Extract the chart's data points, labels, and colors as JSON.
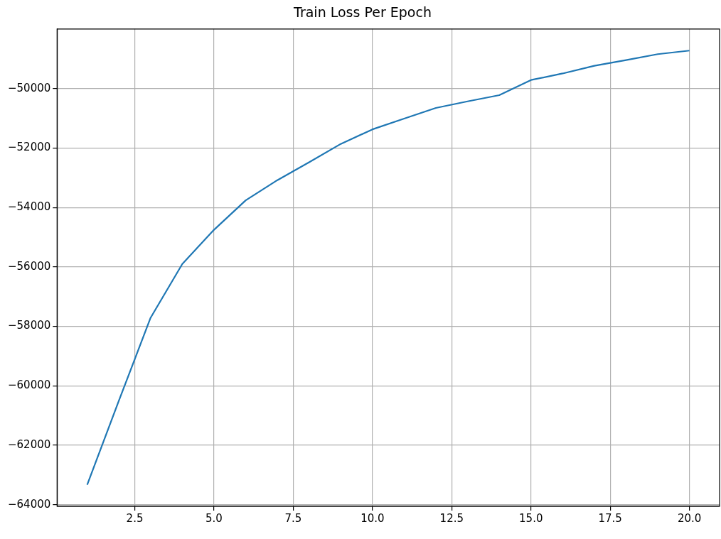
{
  "chart_data": {
    "type": "line",
    "title": "Train Loss Per Epoch",
    "x": [
      1,
      2,
      3,
      4,
      5,
      6,
      7,
      8,
      9,
      10,
      11,
      12,
      13,
      14,
      15,
      16,
      17,
      18,
      19,
      20
    ],
    "series": [
      {
        "color": "#1f77b4",
        "values": [
          -63330,
          -60500,
          -57710,
          -55900,
          -54750,
          -53760,
          -53080,
          -52480,
          -51860,
          -51370,
          -51010,
          -50650,
          -50430,
          -50220,
          -49710,
          -49490,
          -49230,
          -49040,
          -48840,
          -48720
        ]
      }
    ],
    "xlim": [
      0.05,
      20.95
    ],
    "xticks": [
      {
        "value": 2.5,
        "label": "2.5"
      },
      {
        "value": 5,
        "label": "5.0"
      },
      {
        "value": 7.5,
        "label": "7.5"
      },
      {
        "value": 10,
        "label": "10.0"
      },
      {
        "value": 12.5,
        "label": "12.5"
      },
      {
        "value": 15,
        "label": "15.0"
      },
      {
        "value": 17.5,
        "label": "17.5"
      },
      {
        "value": 20,
        "label": "20.0"
      }
    ],
    "ylim": [
      -64055,
      -47993
    ],
    "yticks": [
      {
        "value": -64000,
        "label": "−64000"
      },
      {
        "value": -62000,
        "label": "−62000"
      },
      {
        "value": -60000,
        "label": "−60000"
      },
      {
        "value": -58000,
        "label": "−58000"
      },
      {
        "value": -56000,
        "label": "−56000"
      },
      {
        "value": -54000,
        "label": "−54000"
      },
      {
        "value": -52000,
        "label": "−52000"
      },
      {
        "value": -50000,
        "label": "−50000"
      }
    ],
    "grid": true,
    "marker": "none",
    "line_style": "solid"
  }
}
